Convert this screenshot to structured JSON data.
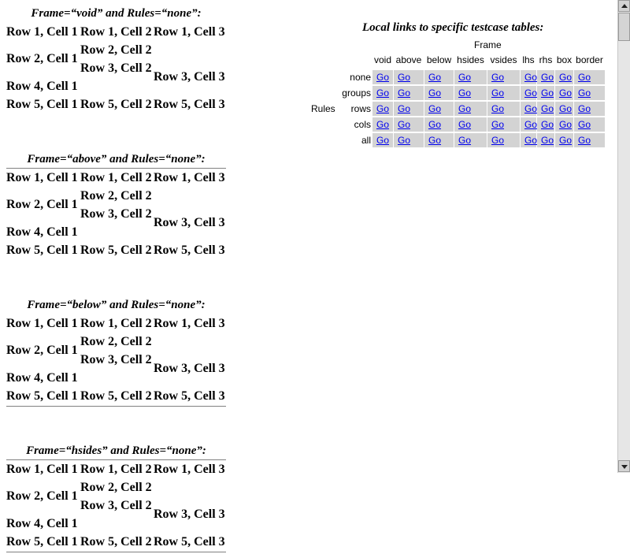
{
  "tests": [
    {
      "caption": "Frame=“void” and Rules=“none”:"
    },
    {
      "caption": "Frame=“above” and Rules=“none”:"
    },
    {
      "caption": "Frame=“below” and Rules=“none”:"
    },
    {
      "caption": "Frame=“hsides” and Rules=“none”:"
    }
  ],
  "cells": {
    "r1c1": "Row 1, Cell 1",
    "r1c2": "Row 1, Cell 2",
    "r1c3": "Row 1, Cell 3",
    "r2c1": "Row 2, Cell 1",
    "r2c2": "Row 2, Cell 2",
    "r3c2": "Row 3, Cell 2",
    "r3c3": "Row 3, Cell 3",
    "r4c1": "Row 4, Cell 1",
    "r5c1": "Row 5, Cell 1",
    "r5c2": "Row 5, Cell 2",
    "r5c3": "Row 5, Cell 3"
  },
  "links_panel": {
    "heading": "Local links to specific testcase tables:",
    "frame_label": "Frame",
    "rules_label": "Rules",
    "frames": [
      "void",
      "above",
      "below",
      "hsides",
      "vsides",
      "lhs",
      "rhs",
      "box",
      "border"
    ],
    "rules": [
      "none",
      "groups",
      "rows",
      "cols",
      "all"
    ],
    "link_text": "Go"
  },
  "scrollbar": {
    "up_icon": "arrow-up-icon",
    "down_icon": "arrow-down-icon"
  }
}
